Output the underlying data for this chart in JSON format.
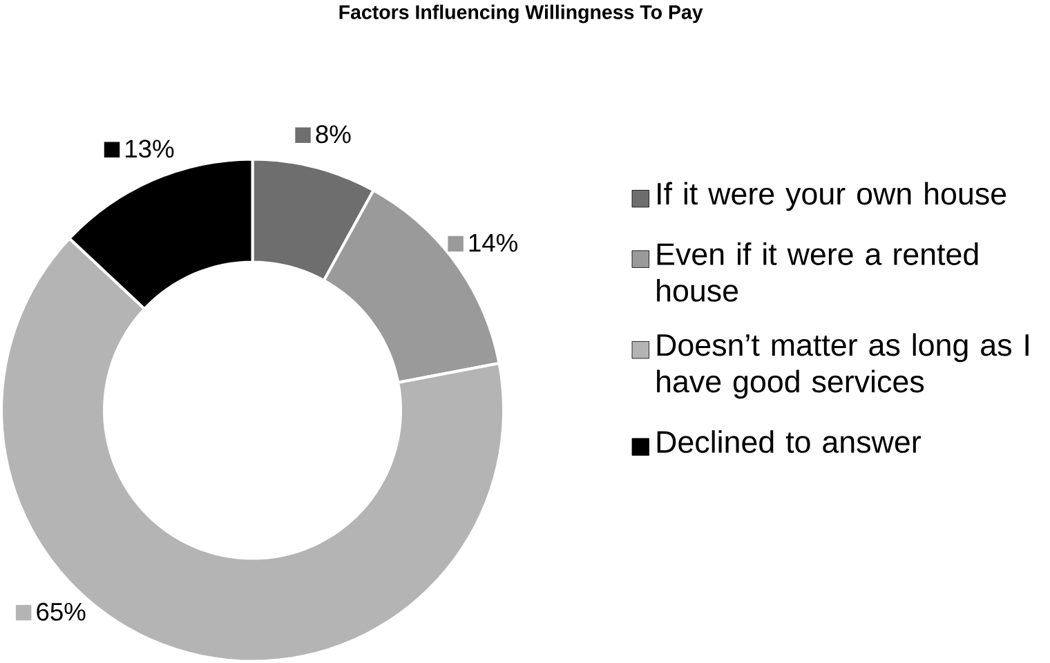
{
  "chart_data": {
    "type": "donut",
    "title": "Factors Influencing Willingness To Pay",
    "categories": [
      "If it were your own house",
      "Even if it were a rented house",
      "Doesn’t matter as long as I have good services",
      "Declined to answer"
    ],
    "values": [
      8,
      14,
      65,
      13
    ],
    "value_labels": [
      "8%",
      "14%",
      "65%",
      "13%"
    ],
    "colors": [
      "#6e6e6e",
      "#9a9a9a",
      "#b4b4b4",
      "#000000"
    ],
    "legend": "right"
  }
}
